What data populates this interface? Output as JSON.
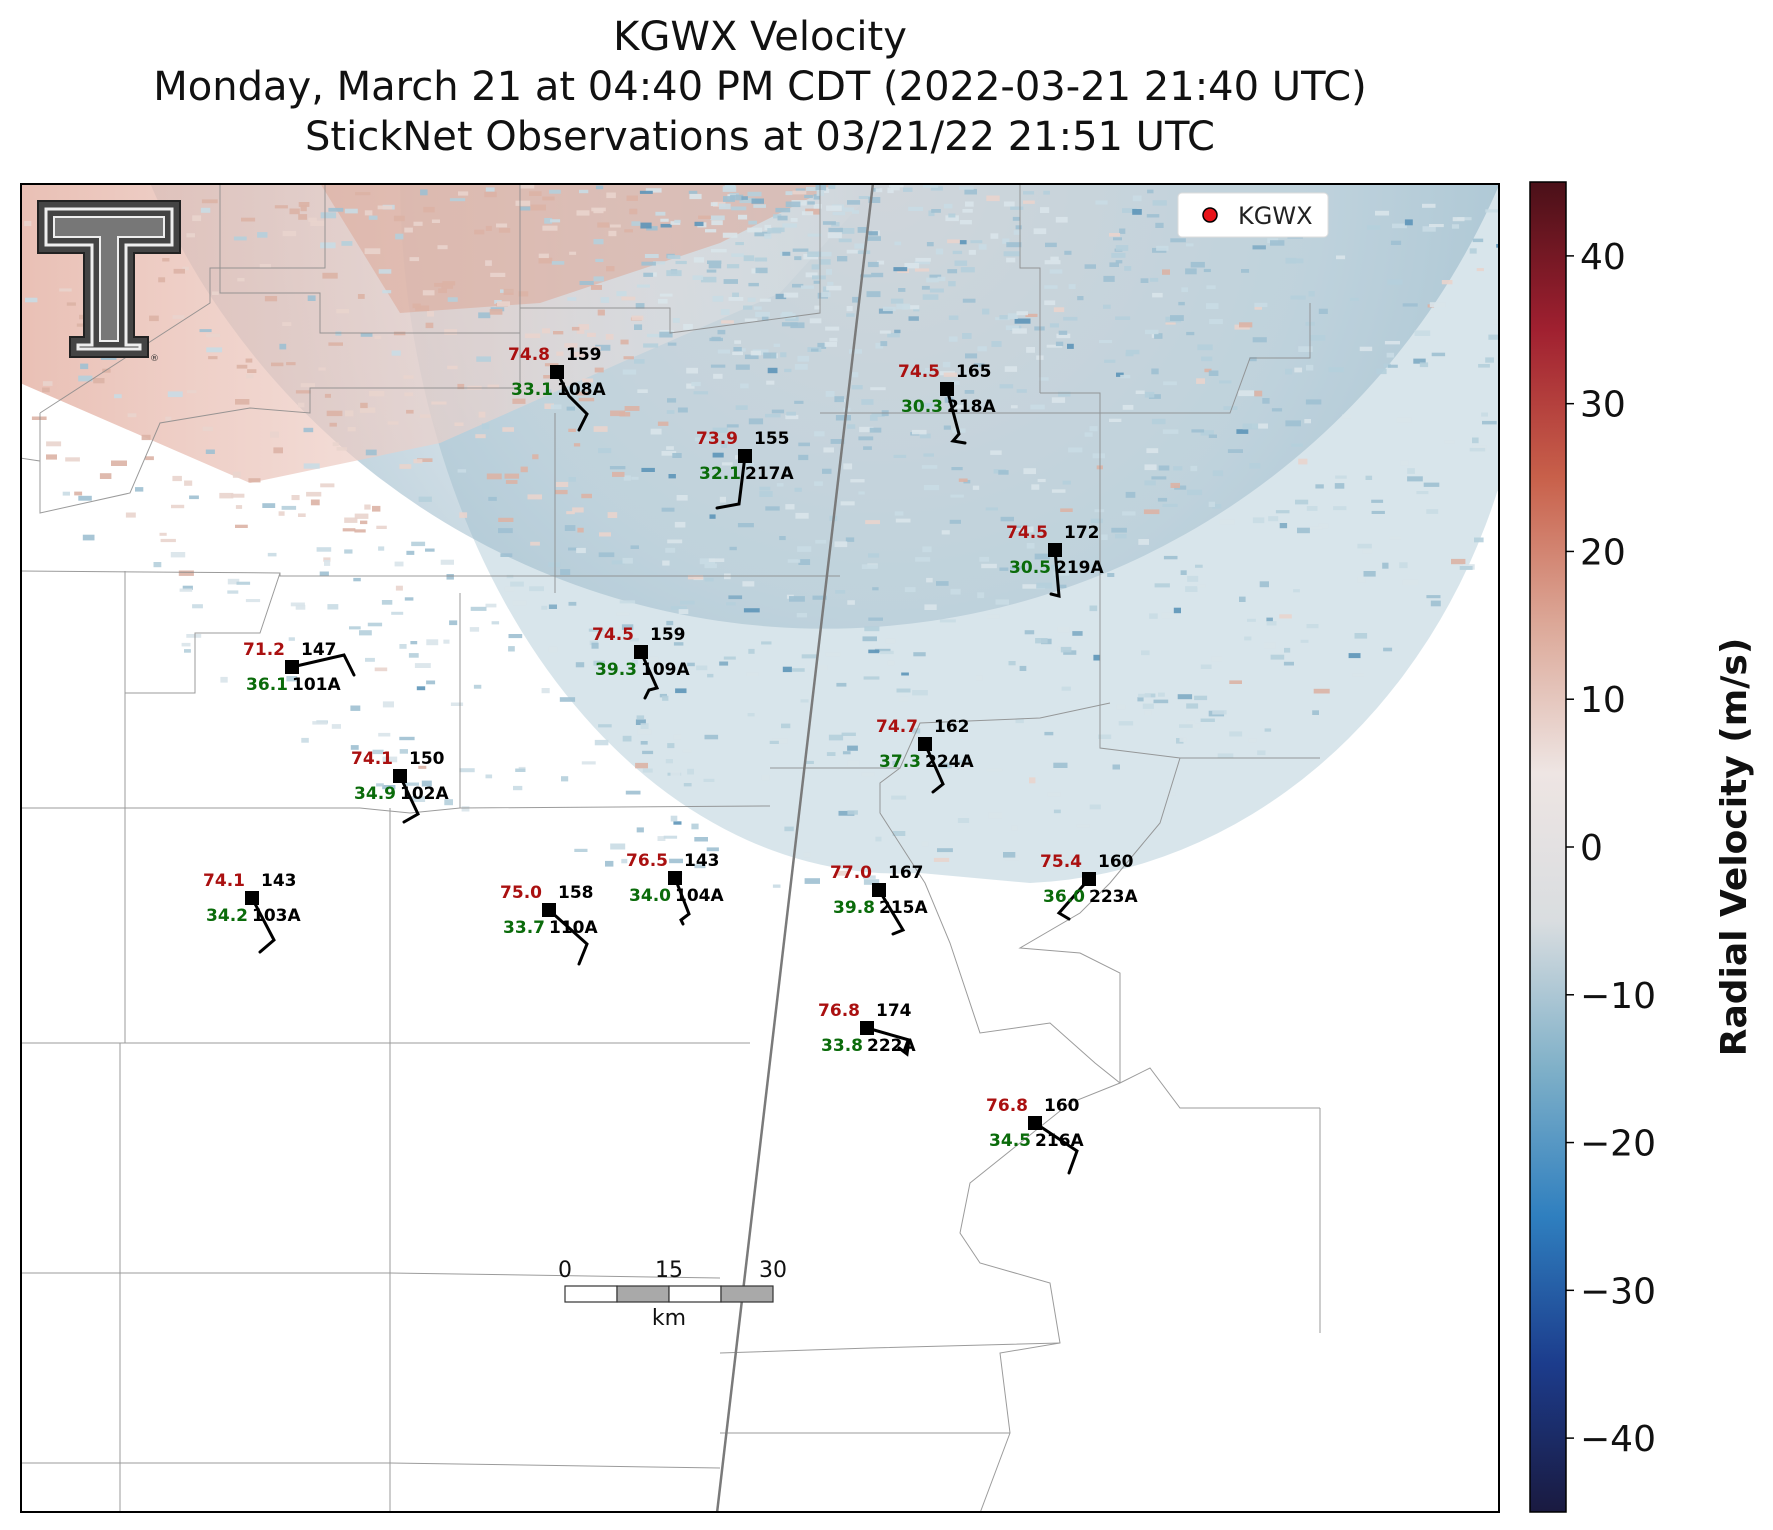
{
  "title": {
    "line1": "KGWX Velocity",
    "line2": "Monday, March 21 at 04:40 PM CDT (2022-03-21 21:40 UTC)",
    "line3": "StickNet Observations at 03/21/22 21:51 UTC"
  },
  "legend": {
    "label": "KGWX",
    "marker_color": "#e8141a"
  },
  "colorbar": {
    "label": "Radial Velocity (m/s)",
    "range": [
      -45,
      45
    ],
    "ticks": [
      {
        "v": 40,
        "t": "40"
      },
      {
        "v": 30,
        "t": "30"
      },
      {
        "v": 20,
        "t": "20"
      },
      {
        "v": 10,
        "t": "10"
      },
      {
        "v": 0,
        "t": "0"
      },
      {
        "v": -10,
        "t": "−10"
      },
      {
        "v": -20,
        "t": "−20"
      },
      {
        "v": -30,
        "t": "−30"
      },
      {
        "v": -40,
        "t": "−40"
      }
    ],
    "colors": [
      "#1a1a40",
      "#1c3c8c",
      "#2f7fbf",
      "#7fb0c8",
      "#d9dde0",
      "#eee5e3",
      "#dca898",
      "#c8604a",
      "#a02030",
      "#4a1018"
    ]
  },
  "scale_bar": {
    "labels": [
      "0",
      "15",
      "30"
    ],
    "unit": "km"
  },
  "logo": {
    "name": "Texas Tech Double T"
  },
  "colors": {
    "temp": "#aa1010",
    "dewpoint": "#0a6b0a",
    "station": "#000000"
  },
  "stations": [
    {
      "id": "108A",
      "temp": "74.8",
      "dew": "33.1",
      "pres": "159"
    },
    {
      "id": "217A",
      "temp": "73.9",
      "dew": "32.1",
      "pres": "155"
    },
    {
      "id": "218A",
      "temp": "74.5",
      "dew": "30.3",
      "pres": "165"
    },
    {
      "id": "219A",
      "temp": "74.5",
      "dew": "30.5",
      "pres": "172"
    },
    {
      "id": "101A",
      "temp": "71.2",
      "dew": "36.1",
      "pres": "147"
    },
    {
      "id": "109A",
      "temp": "74.5",
      "dew": "39.3",
      "pres": "159"
    },
    {
      "id": "224A",
      "temp": "74.7",
      "dew": "37.3",
      "pres": "162"
    },
    {
      "id": "102A",
      "temp": "74.1",
      "dew": "34.9",
      "pres": "150"
    },
    {
      "id": "103A",
      "temp": "74.1",
      "dew": "34.2",
      "pres": "143"
    },
    {
      "id": "110A",
      "temp": "75.0",
      "dew": "33.7",
      "pres": "158"
    },
    {
      "id": "104A",
      "temp": "76.5",
      "dew": "34.0",
      "pres": "143"
    },
    {
      "id": "215A",
      "temp": "77.0",
      "dew": "39.8",
      "pres": "167"
    },
    {
      "id": "223A",
      "temp": "75.4",
      "dew": "36.0",
      "pres": "160"
    },
    {
      "id": "222A",
      "temp": "76.8",
      "dew": "33.8",
      "pres": "174"
    },
    {
      "id": "216A",
      "temp": "76.8",
      "dew": "34.5",
      "pres": "160"
    }
  ]
}
